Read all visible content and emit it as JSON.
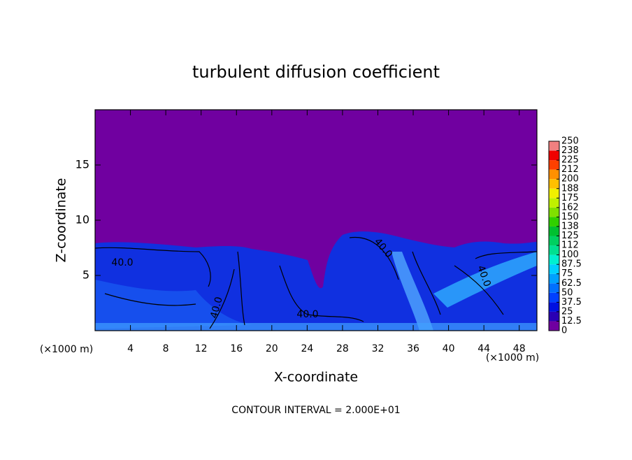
{
  "chart_data": {
    "type": "contour",
    "title": "turbulent diffusion coefficient",
    "x_label": "X-coordinate",
    "y_label": "Z-coordinate",
    "x_unit_left": "(×1000 m)",
    "x_unit_right": "(×1000 m)",
    "footer": "CONTOUR INTERVAL = 2.000E+01",
    "contour_labels": [
      "40.0",
      "40.0",
      "40.0",
      "40.0",
      "40.0"
    ],
    "xlim": [
      0,
      50
    ],
    "xticks": [
      4,
      8,
      12,
      16,
      20,
      24,
      28,
      32,
      36,
      40,
      44,
      48
    ],
    "ylim": [
      0,
      20
    ],
    "yticks": [
      5,
      10,
      15
    ],
    "colorbar": {
      "levels": [
        0,
        12.5,
        25,
        37.5,
        50,
        62.5,
        75,
        87.5,
        100,
        {
          "value": 112.5,
          "label": "112"
        },
        125,
        {
          "value": 137.5,
          "label": "138"
        },
        150,
        {
          "value": 162.5,
          "label": "162"
        },
        175,
        {
          "value": 187.5,
          "label": "188"
        },
        200,
        {
          "value": 212.5,
          "label": "212"
        },
        225,
        {
          "value": 237.5,
          "label": "238"
        },
        250
      ],
      "colors": [
        "#7000a0",
        "#2a00b4",
        "#0010e0",
        "#0040ff",
        "#0070ff",
        "#00a0ff",
        "#00d0ff",
        "#00f0d0",
        "#00e090",
        "#00d060",
        "#00c030",
        "#30d000",
        "#80e000",
        "#c0f000",
        "#f0f000",
        "#ffc000",
        "#ff9000",
        "#ff4000",
        "#f00000",
        "#f08080"
      ]
    }
  }
}
